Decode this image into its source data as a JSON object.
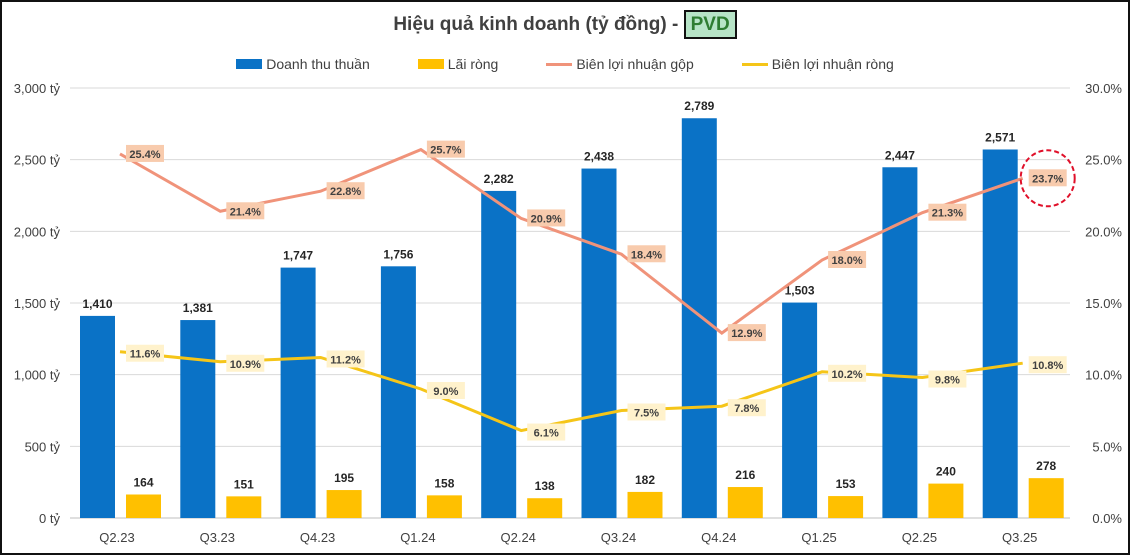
{
  "chart_data": {
    "type": "bar+line",
    "title": "Hiệu quả kinh doanh (tỷ đồng) - ",
    "ticker": "PVD",
    "categories": [
      "Q2.23",
      "Q3.23",
      "Q4.23",
      "Q1.24",
      "Q2.24",
      "Q3.24",
      "Q4.24",
      "Q1.25",
      "Q2.25",
      "Q3.25"
    ],
    "series": [
      {
        "name": "Doanh thu thuần",
        "type": "bar",
        "axis": "left",
        "color": "#0a72c6",
        "values": [
          1410,
          1381,
          1747,
          1756,
          2282,
          2438,
          2789,
          1503,
          2447,
          2571
        ],
        "labels": [
          "1,410",
          "1,381",
          "1,747",
          "1,756",
          "2,282",
          "2,438",
          "2,789",
          "1,503",
          "2,447",
          "2,571"
        ]
      },
      {
        "name": "Lãi ròng",
        "type": "bar",
        "axis": "left",
        "color": "#ffc000",
        "values": [
          164,
          151,
          195,
          158,
          138,
          182,
          216,
          153,
          240,
          278
        ],
        "labels": [
          "164",
          "151",
          "195",
          "158",
          "138",
          "182",
          "216",
          "153",
          "240",
          "278"
        ]
      },
      {
        "name": "Biên lợi nhuận gộp",
        "type": "line",
        "axis": "right",
        "color": "#f0937a",
        "values": [
          25.4,
          21.4,
          22.8,
          25.7,
          20.9,
          18.4,
          12.9,
          18.0,
          21.3,
          23.7
        ],
        "labels": [
          "25.4%",
          "21.4%",
          "22.8%",
          "25.7%",
          "20.9%",
          "18.4%",
          "12.9%",
          "18.0%",
          "21.3%",
          "23.7%"
        ]
      },
      {
        "name": "Biên lợi nhuận ròng",
        "type": "line",
        "axis": "right",
        "color": "#f5c518",
        "values": [
          11.6,
          10.9,
          11.2,
          9.0,
          6.1,
          7.5,
          7.8,
          10.2,
          9.8,
          10.8
        ],
        "labels": [
          "11.6%",
          "10.9%",
          "11.2%",
          "9.0%",
          "6.1%",
          "7.5%",
          "7.8%",
          "10.2%",
          "9.8%",
          "10.8%"
        ]
      }
    ],
    "left_axis": {
      "range": [
        0,
        3000
      ],
      "ticks": [
        "0 tỷ",
        "500 tỷ",
        "1,000 tỷ",
        "1,500 tỷ",
        "2,000 tỷ",
        "2,500 tỷ",
        "3,000 tỷ"
      ]
    },
    "right_axis": {
      "range": [
        0,
        30
      ],
      "ticks": [
        "0.0%",
        "5.0%",
        "10.0%",
        "15.0%",
        "20.0%",
        "25.0%",
        "30.0%"
      ]
    },
    "grid": true,
    "legend": "top",
    "annotation": "red dashed circle around last gross margin label"
  }
}
